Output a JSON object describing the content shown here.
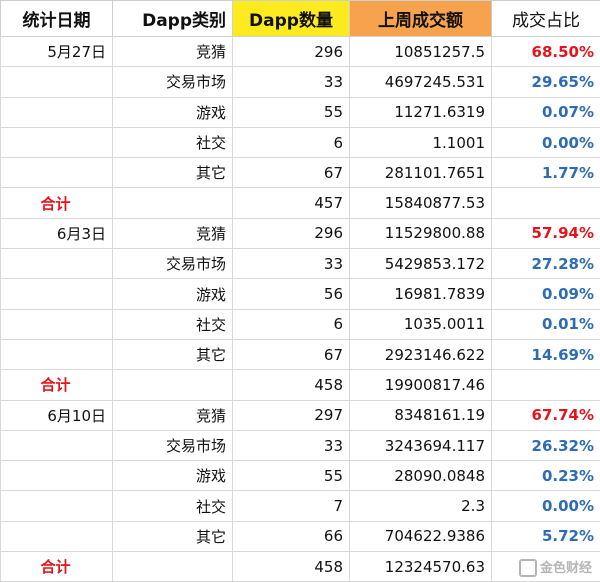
{
  "headers": [
    {
      "label": "统计日期",
      "bg": "#ffffff"
    },
    {
      "label": "Dapp类别",
      "bg": "#ffffff"
    },
    {
      "label": "Dapp数量",
      "bg": "#fdeb1f"
    },
    {
      "label": "上周成交额",
      "bg": "#f7a24d"
    },
    {
      "label": "成交占比",
      "bg": "#ffffff"
    }
  ],
  "rows": [
    {
      "date": "5月27日",
      "category": "竞猜",
      "count": "296",
      "volume": "10851257.5",
      "share": "68.50%",
      "share_color": "red"
    },
    {
      "date": "",
      "category": "交易市场",
      "count": "33",
      "volume": "4697245.531",
      "share": "29.65%",
      "share_color": "blue"
    },
    {
      "date": "",
      "category": "游戏",
      "count": "55",
      "volume": "11271.6319",
      "share": "0.07%",
      "share_color": "blue"
    },
    {
      "date": "",
      "category": "社交",
      "count": "6",
      "volume": "1.1001",
      "share": "0.00%",
      "share_color": "blue"
    },
    {
      "date": "",
      "category": "其它",
      "count": "67",
      "volume": "281101.7651",
      "share": "1.77%",
      "share_color": "blue"
    },
    {
      "date": "合计",
      "category": "",
      "count": "457",
      "volume": "15840877.53",
      "share": "",
      "share_color": "blue",
      "total": true
    },
    {
      "date": "6月3日",
      "category": "竞猜",
      "count": "296",
      "volume": "11529800.88",
      "share": "57.94%",
      "share_color": "red"
    },
    {
      "date": "",
      "category": "交易市场",
      "count": "33",
      "volume": "5429853.172",
      "share": "27.28%",
      "share_color": "blue"
    },
    {
      "date": "",
      "category": "游戏",
      "count": "56",
      "volume": "16981.7839",
      "share": "0.09%",
      "share_color": "blue"
    },
    {
      "date": "",
      "category": "社交",
      "count": "6",
      "volume": "1035.0011",
      "share": "0.01%",
      "share_color": "blue"
    },
    {
      "date": "",
      "category": "其它",
      "count": "67",
      "volume": "2923146.622",
      "share": "14.69%",
      "share_color": "blue"
    },
    {
      "date": "合计",
      "category": "",
      "count": "458",
      "volume": "19900817.46",
      "share": "",
      "share_color": "blue",
      "total": true
    },
    {
      "date": "6月10日",
      "category": "竞猜",
      "count": "297",
      "volume": "8348161.19",
      "share": "67.74%",
      "share_color": "red"
    },
    {
      "date": "",
      "category": "交易市场",
      "count": "33",
      "volume": "3243694.117",
      "share": "26.32%",
      "share_color": "blue"
    },
    {
      "date": "",
      "category": "游戏",
      "count": "55",
      "volume": "28090.0848",
      "share": "0.23%",
      "share_color": "blue"
    },
    {
      "date": "",
      "category": "社交",
      "count": "7",
      "volume": "2.3",
      "share": "0.00%",
      "share_color": "blue"
    },
    {
      "date": "",
      "category": "其它",
      "count": "66",
      "volume": "704622.9386",
      "share": "5.72%",
      "share_color": "blue"
    },
    {
      "date": "合计",
      "category": "",
      "count": "458",
      "volume": "12324570.63",
      "share": "",
      "share_color": "blue",
      "total": true
    }
  ],
  "watermark": {
    "text": "金色财经",
    "color": "#787878"
  }
}
